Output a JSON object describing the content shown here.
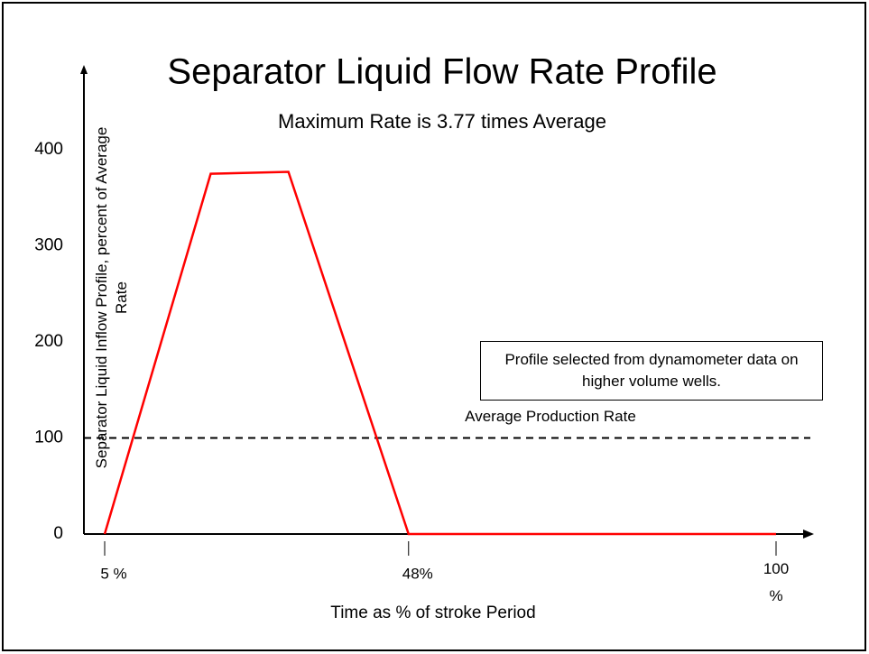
{
  "chart_data": {
    "type": "line",
    "title": "Separator Liquid Flow Rate Profile",
    "subtitle": "Maximum Rate is 3.77 times Average",
    "x_label": "Time as % of stroke Period",
    "y_label": "Separator Liquid Inflow  Profile, percent of Average Rate",
    "x": [
      5,
      20,
      31,
      48,
      100
    ],
    "series": [
      {
        "color": "#ff0000",
        "values": [
          0,
          375,
          377,
          0,
          0
        ]
      }
    ],
    "xlim": [
      5,
      100
    ],
    "xticks": [
      {
        "value": 5,
        "label": "5 %"
      },
      {
        "value": 48,
        "label": "48%"
      },
      {
        "value": 100,
        "label": "100 %"
      }
    ],
    "ylim": [
      0,
      400
    ],
    "yticks": [
      0,
      100,
      200,
      300,
      400
    ],
    "reference_line": {
      "value": 100,
      "label": "Average Production Rate"
    },
    "annotation": "Profile selected from dynamometer data on higher volume wells."
  }
}
